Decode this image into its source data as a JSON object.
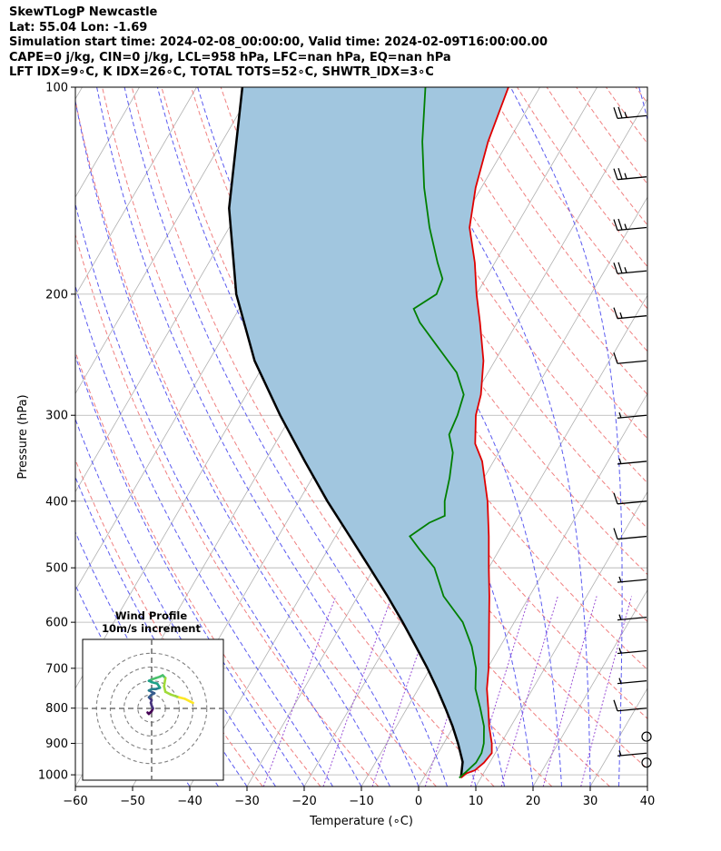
{
  "header": {
    "line1": "SkewTLogP Newcastle",
    "line2": "Lat: 55.04   Lon: -1.69",
    "line3": "Simulation start time: 2024-02-08_00:00:00, Valid time: 2024-02-09T16:00:00.00",
    "line4": "CAPE=0 j/kg, CIN=0 j/kg, LCL=958 hPa, LFC=nan hPa, EQ=nan hPa",
    "line5": "LFT IDX=9∘C, K IDX=26∘C, TOTAL TOTS=52∘C, SHWTR_IDX=3∘C"
  },
  "colors": {
    "temperature": "#e00000",
    "dewpoint": "#007f00",
    "parcel": "#000000",
    "cape_fill": "#a1c6df",
    "dry_adiabat": "#f08080",
    "moist_adiabat": "#5a5af0",
    "mixing_ratio": "#9a4fd6",
    "isotherm": "#b0b0b0",
    "grid": "#b0b0b0"
  },
  "chart_data": {
    "type": "line",
    "subtype": "skew-T log-P diagram",
    "xlabel": "Temperature (∘C)",
    "ylabel": "Pressure (hPa)",
    "xlim": [
      -60,
      40
    ],
    "ylim": [
      1040,
      100
    ],
    "x_ticks": [
      -60,
      -50,
      -40,
      -30,
      -20,
      -10,
      0,
      10,
      20,
      30,
      40
    ],
    "x_tick_labels": [
      "−60",
      "−50",
      "−40",
      "−30",
      "−20",
      "−10",
      "0",
      "10",
      "20",
      "30",
      "40"
    ],
    "y_ticks": [
      100,
      200,
      300,
      400,
      500,
      600,
      700,
      800,
      900,
      1000
    ],
    "y_tick_labels": [
      "100",
      "200",
      "300",
      "400",
      "500",
      "600",
      "700",
      "800",
      "900",
      "1000"
    ],
    "skew_deg_c_per_decade": 70,
    "series": [
      {
        "name": "Temperature",
        "points": [
          [
            1010,
            6.5
          ],
          [
            995,
            7.0
          ],
          [
            985,
            8.2
          ],
          [
            960,
            9.0
          ],
          [
            930,
            9.4
          ],
          [
            900,
            8.4
          ],
          [
            850,
            6.2
          ],
          [
            800,
            4.2
          ],
          [
            750,
            2.0
          ],
          [
            700,
            0.2
          ],
          [
            650,
            -2.0
          ],
          [
            600,
            -4.4
          ],
          [
            550,
            -7.0
          ],
          [
            500,
            -10.0
          ],
          [
            450,
            -13.2
          ],
          [
            400,
            -17.0
          ],
          [
            350,
            -22.0
          ],
          [
            330,
            -25.0
          ],
          [
            300,
            -27.8
          ],
          [
            280,
            -29.0
          ],
          [
            250,
            -32.0
          ],
          [
            220,
            -36.5
          ],
          [
            200,
            -40.0
          ],
          [
            180,
            -43.5
          ],
          [
            160,
            -48.0
          ],
          [
            140,
            -51.0
          ],
          [
            120,
            -53.5
          ],
          [
            100,
            -55.5
          ]
        ]
      },
      {
        "name": "Dewpoint",
        "points": [
          [
            1010,
            6.2
          ],
          [
            990,
            6.8
          ],
          [
            960,
            7.6
          ],
          [
            930,
            7.6
          ],
          [
            900,
            7.0
          ],
          [
            850,
            5.3
          ],
          [
            800,
            2.8
          ],
          [
            750,
            0.0
          ],
          [
            700,
            -2.0
          ],
          [
            650,
            -5.0
          ],
          [
            600,
            -9.0
          ],
          [
            550,
            -15.0
          ],
          [
            500,
            -19.5
          ],
          [
            470,
            -24.0
          ],
          [
            450,
            -27.0
          ],
          [
            430,
            -25.0
          ],
          [
            420,
            -23.0
          ],
          [
            400,
            -24.5
          ],
          [
            370,
            -26.0
          ],
          [
            340,
            -28.0
          ],
          [
            320,
            -30.5
          ],
          [
            300,
            -31.0
          ],
          [
            280,
            -32.0
          ],
          [
            260,
            -35.5
          ],
          [
            240,
            -41.0
          ],
          [
            220,
            -47.0
          ],
          [
            210,
            -49.5
          ],
          [
            200,
            -47.0
          ],
          [
            190,
            -47.5
          ],
          [
            180,
            -50.0
          ],
          [
            160,
            -55.0
          ],
          [
            140,
            -60.0
          ],
          [
            120,
            -65.0
          ],
          [
            100,
            -70.0
          ]
        ]
      },
      {
        "name": "Parcel",
        "points": [
          [
            1010,
            6.5
          ],
          [
            958,
            5.2
          ],
          [
            900,
            2.5
          ],
          [
            850,
            -0.2
          ],
          [
            800,
            -3.3
          ],
          [
            750,
            -6.7
          ],
          [
            700,
            -10.5
          ],
          [
            650,
            -14.8
          ],
          [
            600,
            -19.5
          ],
          [
            550,
            -24.8
          ],
          [
            500,
            -30.8
          ],
          [
            450,
            -37.5
          ],
          [
            400,
            -45.0
          ],
          [
            350,
            -53.0
          ],
          [
            300,
            -62.0
          ],
          [
            250,
            -72.0
          ],
          [
            200,
            -82.0
          ],
          [
            150,
            -92.0
          ],
          [
            100,
            -102.0
          ]
        ]
      }
    ],
    "wind_barbs": [
      {
        "p": 110,
        "speed_kt": 25
      },
      {
        "p": 135,
        "speed_kt": 25
      },
      {
        "p": 160,
        "speed_kt": 25
      },
      {
        "p": 185,
        "speed_kt": 25
      },
      {
        "p": 215,
        "speed_kt": 15
      },
      {
        "p": 250,
        "speed_kt": 10
      },
      {
        "p": 300,
        "speed_kt": 5
      },
      {
        "p": 350,
        "speed_kt": 5
      },
      {
        "p": 400,
        "speed_kt": 10
      },
      {
        "p": 450,
        "speed_kt": 10
      },
      {
        "p": 520,
        "speed_kt": 5
      },
      {
        "p": 590,
        "speed_kt": 5
      },
      {
        "p": 660,
        "speed_kt": 5
      },
      {
        "p": 730,
        "speed_kt": 5
      },
      {
        "p": 800,
        "speed_kt": 10
      },
      {
        "p": 880,
        "speed_kt": 0
      },
      {
        "p": 930,
        "speed_kt": 5
      },
      {
        "p": 960,
        "speed_kt": 0
      }
    ],
    "hodograph": {
      "title_line1": "Wind Profile",
      "title_line2": "10m/s increment",
      "rings_ms": [
        10,
        20,
        30,
        40
      ],
      "range_ms": 25,
      "trace": [
        [
          -1.5,
          -1.5
        ],
        [
          -1.0,
          -2.0
        ],
        [
          -0.5,
          -1.5
        ],
        [
          0.0,
          -1.0
        ],
        [
          0.5,
          0.0
        ],
        [
          0.0,
          1.0
        ],
        [
          -0.3,
          2.0
        ],
        [
          0.0,
          3.0
        ],
        [
          -1.0,
          4.0
        ],
        [
          0.0,
          5.0
        ],
        [
          1.0,
          5.5
        ],
        [
          0.0,
          6.0
        ],
        [
          -1.0,
          6.5
        ],
        [
          0.0,
          7.0
        ],
        [
          1.5,
          7.0
        ],
        [
          3.0,
          7.5
        ],
        [
          2.0,
          9.0
        ],
        [
          0.0,
          9.5
        ],
        [
          -1.0,
          10.0
        ],
        [
          0.0,
          10.5
        ],
        [
          1.5,
          11.0
        ],
        [
          3.0,
          11.5
        ],
        [
          4.0,
          12.0
        ],
        [
          5.0,
          11.0
        ],
        [
          4.5,
          8.0
        ],
        [
          5.0,
          6.0
        ],
        [
          7.0,
          5.0
        ],
        [
          10.0,
          4.0
        ],
        [
          12.0,
          3.5
        ],
        [
          14.0,
          2.5
        ],
        [
          15.0,
          2.0
        ]
      ]
    }
  }
}
